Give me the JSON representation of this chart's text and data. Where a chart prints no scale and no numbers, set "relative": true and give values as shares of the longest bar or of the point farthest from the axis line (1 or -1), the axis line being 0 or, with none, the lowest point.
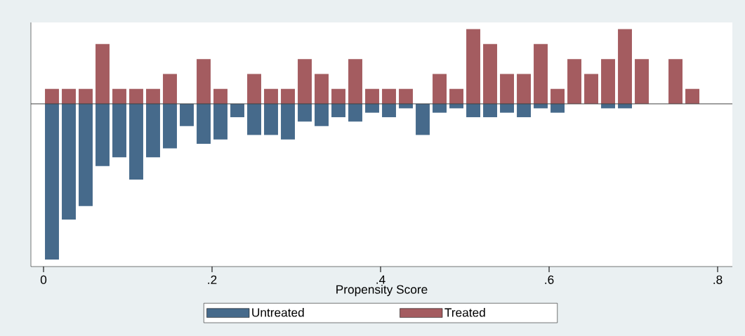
{
  "chart_data": [
    {
      "type": "bar",
      "relative": true,
      "x": [
        0.01,
        0.03,
        0.05,
        0.07,
        0.09,
        0.11,
        0.13,
        0.15,
        0.17,
        0.19,
        0.21,
        0.23,
        0.25,
        0.27,
        0.29,
        0.31,
        0.33,
        0.35,
        0.37,
        0.39,
        0.41,
        0.43,
        0.45,
        0.47,
        0.49,
        0.51,
        0.53,
        0.55,
        0.57,
        0.59,
        0.61,
        0.63,
        0.65,
        0.67,
        0.69,
        0.71,
        0.73,
        0.75,
        0.77
      ],
      "series": [
        {
          "name": "Treated",
          "color": "#a45c60",
          "values": [
            0.2,
            0.2,
            0.2,
            0.8,
            0.2,
            0.2,
            0.2,
            0.4,
            0,
            0.6,
            0.2,
            0,
            0.4,
            0.2,
            0.2,
            0.6,
            0.4,
            0.2,
            0.6,
            0.2,
            0.2,
            0.2,
            0,
            0.4,
            0.2,
            1,
            0.8,
            0.4,
            0.4,
            0.8,
            0.2,
            0.6,
            0.4,
            0.6,
            1,
            0.6,
            0,
            0.6,
            0.2
          ]
        }
      ],
      "xlim": [
        -0.015,
        0.8175
      ],
      "tick_labels": false,
      "legend": "bottom"
    },
    {
      "type": "bar",
      "relative": true,
      "xlabel": "Propensity Score",
      "x": [
        0.01,
        0.03,
        0.05,
        0.07,
        0.09,
        0.11,
        0.13,
        0.15,
        0.17,
        0.19,
        0.21,
        0.23,
        0.25,
        0.27,
        0.29,
        0.31,
        0.33,
        0.35,
        0.37,
        0.39,
        0.41,
        0.43,
        0.45,
        0.47,
        0.49,
        0.51,
        0.53,
        0.55,
        0.57,
        0.59,
        0.61,
        0.63,
        0.65,
        0.67,
        0.69,
        0.71,
        0.73,
        0.75,
        0.77
      ],
      "series": [
        {
          "name": "Untreated",
          "color": "#466a8b",
          "values": [
            -1,
            -0.743,
            -0.657,
            -0.4,
            -0.343,
            -0.486,
            -0.343,
            -0.286,
            -0.143,
            -0.257,
            -0.229,
            -0.086,
            -0.2,
            -0.2,
            -0.229,
            -0.114,
            -0.143,
            -0.086,
            -0.114,
            -0.057,
            -0.086,
            -0.029,
            -0.2,
            -0.057,
            -0.029,
            -0.086,
            -0.086,
            -0.057,
            -0.086,
            -0.029,
            -0.057,
            0,
            0,
            -0.029,
            -0.029,
            0,
            0,
            0,
            0
          ]
        }
      ],
      "xlim": [
        -0.015,
        0.8175
      ],
      "xticks": [
        0,
        {
          "value": 0.2,
          "label": ".2"
        },
        {
          "value": 0.4,
          "label": ".4"
        },
        {
          "value": 0.6,
          "label": ".6"
        },
        {
          "value": 0.8,
          "label": ".8"
        }
      ],
      "tick_labels": "x",
      "legend": "bottom"
    }
  ]
}
